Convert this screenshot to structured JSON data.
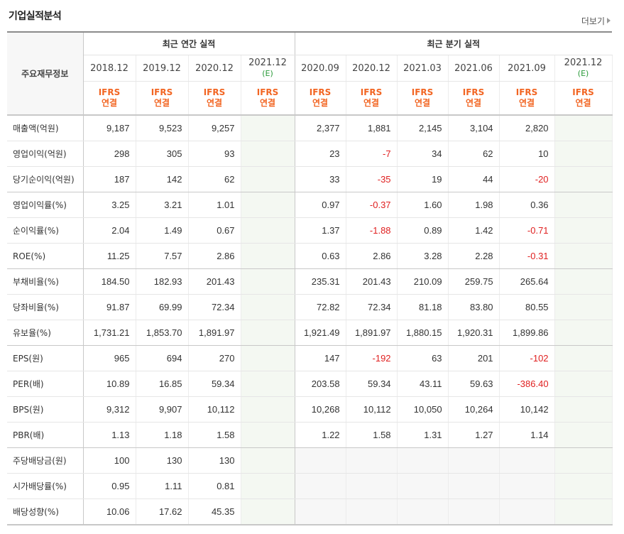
{
  "header": {
    "title": "기업실적분석",
    "more_label": "더보기"
  },
  "table": {
    "row_label_header": "주요재무정보",
    "group_annual": "최근 연간 실적",
    "group_quarter": "최근 분기 실적",
    "periods": [
      {
        "label": "2018.12",
        "est": ""
      },
      {
        "label": "2019.12",
        "est": ""
      },
      {
        "label": "2020.12",
        "est": ""
      },
      {
        "label": "2021.12",
        "est": "(E)"
      },
      {
        "label": "2020.09",
        "est": ""
      },
      {
        "label": "2020.12",
        "est": ""
      },
      {
        "label": "2021.03",
        "est": ""
      },
      {
        "label": "2021.06",
        "est": ""
      },
      {
        "label": "2021.09",
        "est": ""
      },
      {
        "label": "2021.12",
        "est": "(E)"
      }
    ],
    "ifrs_line1": "IFRS",
    "ifrs_line2": "연결",
    "rows": [
      {
        "label": "매출액(억원)",
        "values": [
          "9,187",
          "9,523",
          "9,257",
          "",
          "2,377",
          "1,881",
          "2,145",
          "3,104",
          "2,820",
          ""
        ]
      },
      {
        "label": "영업이익(억원)",
        "values": [
          "298",
          "305",
          "93",
          "",
          "23",
          "-7",
          "34",
          "62",
          "10",
          ""
        ]
      },
      {
        "label": "당기순이익(억원)",
        "values": [
          "187",
          "142",
          "62",
          "",
          "33",
          "-35",
          "19",
          "44",
          "-20",
          ""
        ]
      },
      {
        "label": "영업이익률(%)",
        "values": [
          "3.25",
          "3.21",
          "1.01",
          "",
          "0.97",
          "-0.37",
          "1.60",
          "1.98",
          "0.36",
          ""
        ]
      },
      {
        "label": "순이익률(%)",
        "values": [
          "2.04",
          "1.49",
          "0.67",
          "",
          "1.37",
          "-1.88",
          "0.89",
          "1.42",
          "-0.71",
          ""
        ]
      },
      {
        "label": "ROE(%)",
        "values": [
          "11.25",
          "7.57",
          "2.86",
          "",
          "0.63",
          "2.86",
          "3.28",
          "2.28",
          "-0.31",
          ""
        ]
      },
      {
        "label": "부채비율(%)",
        "values": [
          "184.50",
          "182.93",
          "201.43",
          "",
          "235.31",
          "201.43",
          "210.09",
          "259.75",
          "265.64",
          ""
        ]
      },
      {
        "label": "당좌비율(%)",
        "values": [
          "91.87",
          "69.99",
          "72.34",
          "",
          "72.82",
          "72.34",
          "81.18",
          "83.80",
          "80.55",
          ""
        ]
      },
      {
        "label": "유보율(%)",
        "values": [
          "1,731.21",
          "1,853.70",
          "1,891.97",
          "",
          "1,921.49",
          "1,891.97",
          "1,880.15",
          "1,920.31",
          "1,899.86",
          ""
        ]
      },
      {
        "label": "EPS(원)",
        "values": [
          "965",
          "694",
          "270",
          "",
          "147",
          "-192",
          "63",
          "201",
          "-102",
          ""
        ]
      },
      {
        "label": "PER(배)",
        "values": [
          "10.89",
          "16.85",
          "59.34",
          "",
          "203.58",
          "59.34",
          "43.11",
          "59.63",
          "-386.40",
          ""
        ]
      },
      {
        "label": "BPS(원)",
        "values": [
          "9,312",
          "9,907",
          "10,112",
          "",
          "10,268",
          "10,112",
          "10,050",
          "10,264",
          "10,142",
          ""
        ]
      },
      {
        "label": "PBR(배)",
        "values": [
          "1.13",
          "1.18",
          "1.58",
          "",
          "1.22",
          "1.58",
          "1.31",
          "1.27",
          "1.14",
          ""
        ]
      },
      {
        "label": "주당배당금(원)",
        "values": [
          "100",
          "130",
          "130",
          "",
          "",
          "",
          "",
          "",
          "",
          ""
        ]
      },
      {
        "label": "시가배당률(%)",
        "values": [
          "0.95",
          "1.11",
          "0.81",
          "",
          "",
          "",
          "",
          "",
          "",
          ""
        ]
      },
      {
        "label": "배당성향(%)",
        "values": [
          "10.06",
          "17.62",
          "45.35",
          "",
          "",
          "",
          "",
          "",
          "",
          ""
        ]
      }
    ]
  }
}
